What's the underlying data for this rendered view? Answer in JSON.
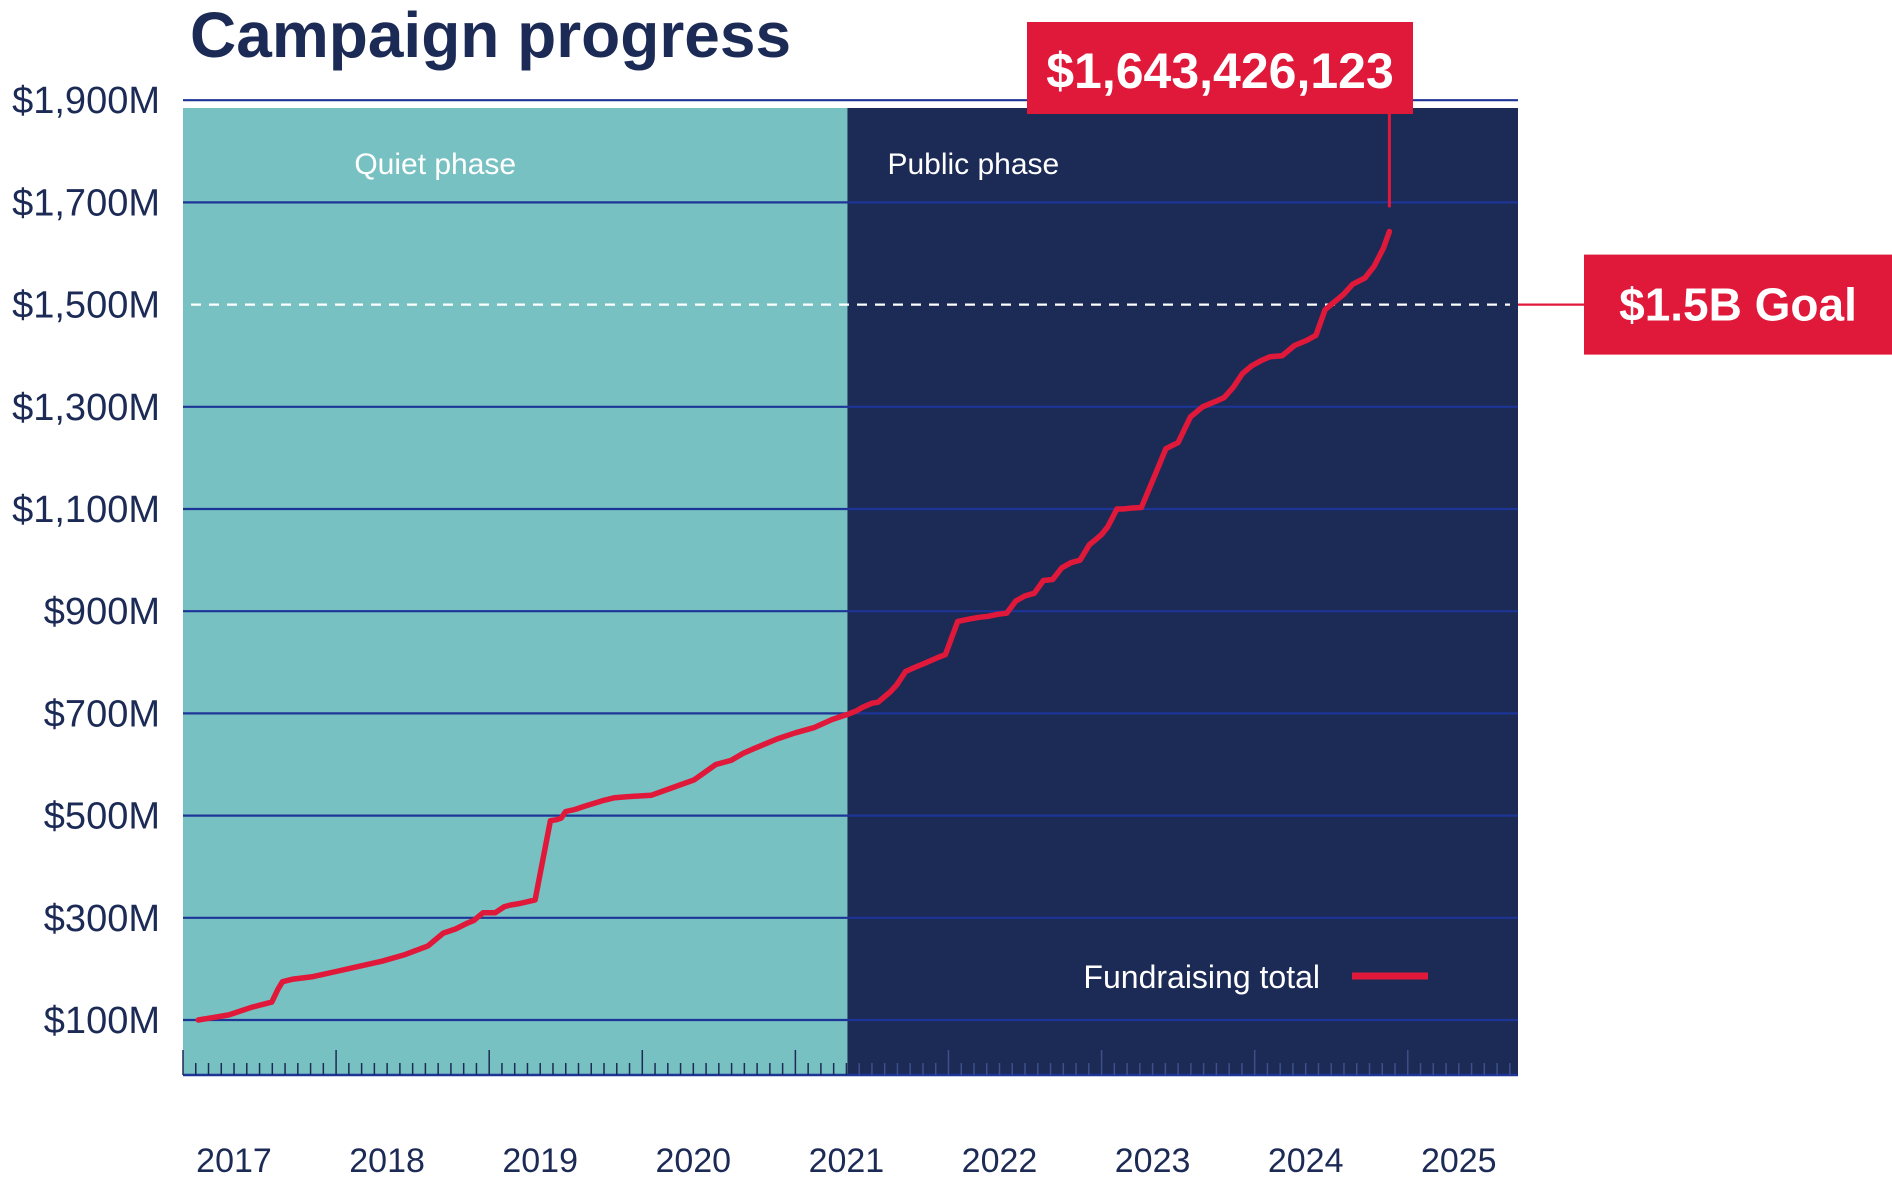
{
  "chart_data": {
    "type": "line",
    "title": "Campaign progress",
    "xlabel": "",
    "ylabel": "",
    "ylim": [
      0,
      1900
    ],
    "x_domain": [
      2017.0,
      2025.72
    ],
    "y_ticks": [
      100,
      300,
      500,
      700,
      900,
      1100,
      1300,
      1500,
      1700,
      1900
    ],
    "y_tick_labels": [
      "$100M",
      "$300M",
      "$500M",
      "$700M",
      "$900M",
      "$1,100M",
      "$1,300M",
      "$1,500M",
      "$1,700M",
      "$1,900M"
    ],
    "x_ticks": [
      2017,
      2018,
      2019,
      2020,
      2021,
      2022,
      2023,
      2024,
      2025
    ],
    "x_tick_labels": [
      "2017",
      "2018",
      "2019",
      "2020",
      "2021",
      "2022",
      "2023",
      "2024",
      "2025"
    ],
    "phases": [
      {
        "label": "Quiet phase",
        "start": 2017.0,
        "end": 2021.34,
        "color": "#78c1c2"
      },
      {
        "label": "Public phase",
        "start": 2021.34,
        "end": 2025.72,
        "color": "#1c2a56"
      }
    ],
    "goal": {
      "value": 1500,
      "label": "$1.5B Goal"
    },
    "final_callout": {
      "label": "$1,643,426,123",
      "value": 1643.4
    },
    "colors": {
      "line": "#e0193a",
      "axis": "#1c2a56",
      "grid": "#1d3596",
      "title": "#1c2a56"
    },
    "grid": true,
    "legend_position": "bottom-right",
    "series": [
      {
        "name": "Fundraising total",
        "x": [
          2017.1,
          2017.2,
          2017.3,
          2017.45,
          2017.58,
          2017.62,
          2017.65,
          2017.72,
          2017.85,
          2018.0,
          2018.15,
          2018.3,
          2018.45,
          2018.6,
          2018.7,
          2018.78,
          2018.86,
          2018.9,
          2018.96,
          2019.04,
          2019.1,
          2019.14,
          2019.2,
          2019.3,
          2019.4,
          2019.44,
          2019.47,
          2019.5,
          2019.56,
          2019.62,
          2019.75,
          2019.82,
          2019.9,
          2020.06,
          2020.2,
          2020.34,
          2020.48,
          2020.58,
          2020.66,
          2020.72,
          2020.8,
          2020.88,
          2021.0,
          2021.12,
          2021.24,
          2021.34,
          2021.4,
          2021.44,
          2021.5,
          2021.54,
          2021.58,
          2021.62,
          2021.66,
          2021.72,
          2021.78,
          2021.86,
          2021.92,
          2021.98,
          2022.06,
          2022.14,
          2022.2,
          2022.26,
          2022.32,
          2022.38,
          2022.44,
          2022.5,
          2022.56,
          2022.62,
          2022.68,
          2022.74,
          2022.8,
          2022.86,
          2022.92,
          2022.96,
          2023.0,
          2023.04,
          2023.1,
          2023.14,
          2023.2,
          2023.26,
          2023.34,
          2023.42,
          2023.5,
          2023.58,
          2023.66,
          2023.74,
          2023.8,
          2023.86,
          2023.92,
          2023.98,
          2024.04,
          2024.1,
          2024.18,
          2024.26,
          2024.34,
          2024.4,
          2024.46,
          2024.52,
          2024.58,
          2024.64,
          2024.72,
          2024.78,
          2024.84,
          2024.88
        ],
        "values": [
          100,
          105,
          110,
          125,
          135,
          160,
          175,
          180,
          185,
          195,
          205,
          215,
          228,
          245,
          270,
          278,
          290,
          295,
          310,
          310,
          322,
          325,
          328,
          335,
          490,
          492,
          495,
          508,
          512,
          518,
          530,
          535,
          537,
          540,
          555,
          570,
          600,
          608,
          622,
          630,
          640,
          650,
          662,
          672,
          688,
          698,
          705,
          712,
          720,
          722,
          732,
          742,
          755,
          782,
          790,
          800,
          808,
          815,
          880,
          885,
          888,
          890,
          894,
          896,
          920,
          930,
          935,
          960,
          962,
          985,
          995,
          1000,
          1030,
          1040,
          1050,
          1065,
          1100,
          1100,
          1102,
          1103,
          1160,
          1218,
          1230,
          1280,
          1300,
          1310,
          1318,
          1338,
          1365,
          1380,
          1390,
          1398,
          1400,
          1420,
          1430,
          1440,
          1490,
          1505,
          1520,
          1540,
          1552,
          1575,
          1610,
          1643
        ]
      }
    ]
  }
}
